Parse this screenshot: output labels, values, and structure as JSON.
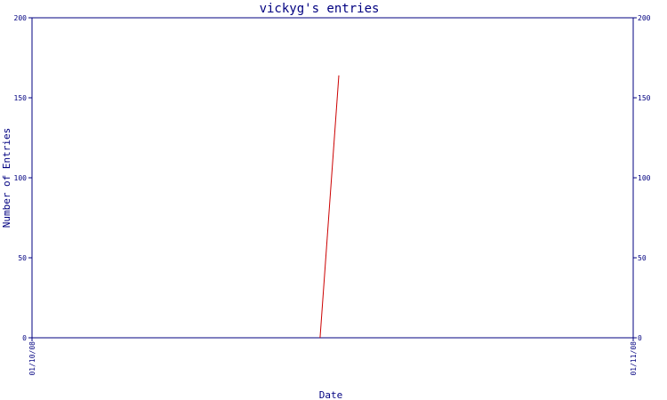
{
  "colors": {
    "axis": "#000080",
    "title": "#000080",
    "line": "#cc0000",
    "background": "#ffffff"
  },
  "chart_data": {
    "type": "line",
    "title": "vickyg's entries",
    "xlabel": "Date",
    "ylabel": "Number of Entries",
    "ylim": [
      0,
      200
    ],
    "yticks": [
      0,
      50,
      100,
      150,
      200
    ],
    "x_tick_labels": [
      "01/10/08",
      "01/11/08"
    ],
    "xlim": [
      "2008-01-10",
      "2008-01-11"
    ],
    "grid": false,
    "series": [
      {
        "x": [
          "2008-01-10 11:30",
          "2008-01-10 12:15"
        ],
        "y": [
          0,
          164
        ]
      }
    ]
  }
}
